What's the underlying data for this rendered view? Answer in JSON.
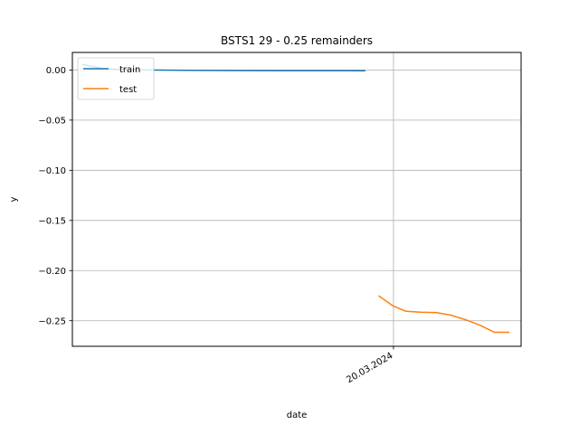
{
  "chart_data": {
    "type": "line",
    "title": "BSTS1 29 - 0.25 remainders",
    "xlabel": "date",
    "ylabel": "y",
    "xlim": [
      "2023-10-16",
      "2024-05-21"
    ],
    "ylim": [
      -0.2755,
      0.0175
    ],
    "yticks": [
      0.0,
      -0.05,
      -0.1,
      -0.15,
      -0.2,
      -0.25
    ],
    "ytick_labels": [
      "0.00",
      "−0.05",
      "−0.10",
      "−0.15",
      "−0.20",
      "−0.25"
    ],
    "xticks": [
      "2024-03-20"
    ],
    "xtick_labels": [
      "20.03.2024"
    ],
    "grid": true,
    "legend": "upper left",
    "series": [
      {
        "name": "train",
        "color": "#1f77b4",
        "x": [
          "2023-10-21",
          "2023-11-01",
          "2023-11-20",
          "2023-12-10",
          "2024-01-01",
          "2024-01-20",
          "2024-02-10",
          "2024-03-06"
        ],
        "y": [
          0.0055,
          0.001,
          0.0,
          -0.0003,
          -0.0005,
          -0.0006,
          -0.0006,
          -0.0007
        ]
      },
      {
        "name": "test",
        "color": "#ff7f0e",
        "x": [
          "2024-03-13",
          "2024-03-20",
          "2024-03-26",
          "2024-04-02",
          "2024-04-10",
          "2024-04-17",
          "2024-04-24",
          "2024-05-01",
          "2024-05-08",
          "2024-05-15"
        ],
        "y": [
          -0.2255,
          -0.2355,
          -0.2405,
          -0.2415,
          -0.242,
          -0.2445,
          -0.249,
          -0.2545,
          -0.2615,
          -0.2615
        ]
      }
    ]
  }
}
